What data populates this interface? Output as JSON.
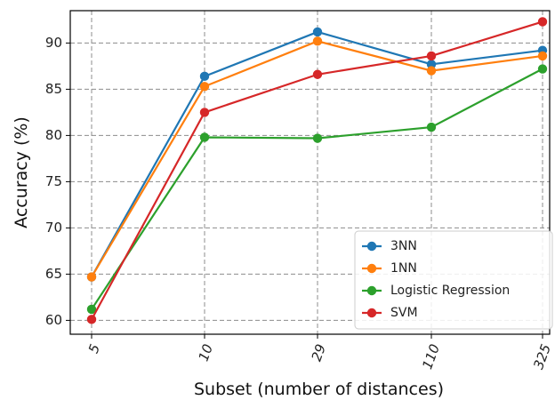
{
  "chart_data": {
    "type": "line",
    "title": "",
    "xlabel": "Subset (number of distances)",
    "ylabel": "Accuracy (%)",
    "categories": [
      "5",
      "10",
      "29",
      "110",
      "325"
    ],
    "ylim": [
      58.5,
      93.5
    ],
    "yticks": [
      60,
      65,
      70,
      75,
      80,
      85,
      90
    ],
    "grid": true,
    "legend_position": "bottom-right",
    "series": [
      {
        "name": "3NN",
        "color": "#1f77b4",
        "values": [
          64.7,
          86.4,
          91.2,
          87.7,
          89.2
        ]
      },
      {
        "name": "1NN",
        "color": "#ff7f0e",
        "values": [
          64.7,
          85.3,
          90.2,
          87.0,
          88.6
        ]
      },
      {
        "name": "Logistic Regression",
        "color": "#2ca02c",
        "values": [
          61.2,
          79.8,
          79.7,
          80.9,
          87.2
        ]
      },
      {
        "name": "SVM",
        "color": "#d62728",
        "values": [
          60.1,
          82.5,
          86.6,
          88.6,
          92.3
        ]
      }
    ]
  }
}
